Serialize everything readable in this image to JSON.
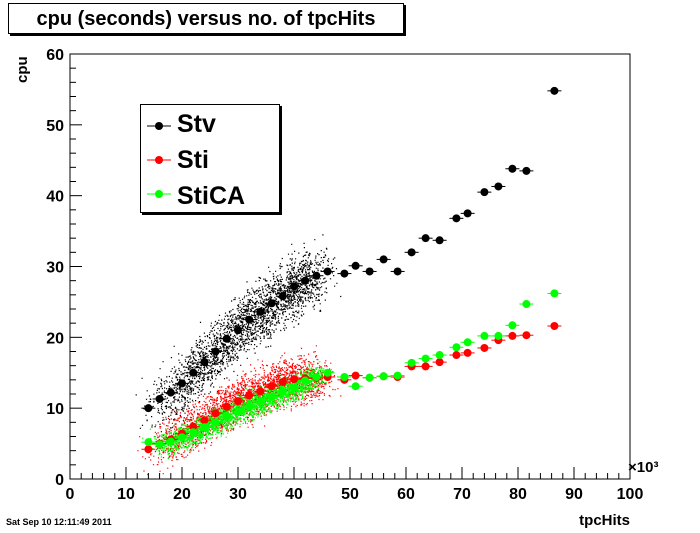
{
  "title": "cpu (seconds) versus no. of tpcHits",
  "timestamp": "Sat Sep 10 12:11:49 2011",
  "colors": {
    "Stv": "#000000",
    "Sti": "#ff0000",
    "StiCA": "#00ff00"
  },
  "chart_data": {
    "type": "scatter",
    "title": "cpu (seconds) versus no. of tpcHits",
    "xlabel": "tpcHits",
    "ylabel": "cpu",
    "x_multiplier": "×10³",
    "xlim": [
      0,
      100
    ],
    "ylim": [
      0,
      60
    ],
    "x_ticks": [
      "0",
      "10",
      "20",
      "30",
      "40",
      "50",
      "60",
      "70",
      "80",
      "90",
      "100"
    ],
    "y_ticks": [
      "0",
      "10",
      "20",
      "30",
      "40",
      "50",
      "60"
    ],
    "grid": false,
    "legend_position": "top-left",
    "series": [
      {
        "name": "Stv",
        "points": [
          [
            14,
            10
          ],
          [
            16,
            11.3
          ],
          [
            18,
            12.2
          ],
          [
            20,
            13.5
          ],
          [
            22,
            15
          ],
          [
            24,
            16.5
          ],
          [
            26,
            18
          ],
          [
            28,
            19.8
          ],
          [
            30,
            21
          ],
          [
            32,
            22.5
          ],
          [
            34,
            23.6
          ],
          [
            36,
            24.8
          ],
          [
            38,
            25.8
          ],
          [
            40,
            27.2
          ],
          [
            42,
            28
          ],
          [
            44,
            28.7
          ],
          [
            46,
            29.3
          ],
          [
            49,
            29
          ],
          [
            51,
            30.1
          ],
          [
            53.5,
            29.3
          ],
          [
            56,
            31
          ],
          [
            58.5,
            29.3
          ],
          [
            61,
            32
          ],
          [
            63.5,
            34
          ],
          [
            66,
            33.7
          ],
          [
            69,
            36.8
          ],
          [
            71,
            37.5
          ],
          [
            74,
            40.5
          ],
          [
            76.5,
            41.3
          ],
          [
            79,
            43.8
          ],
          [
            81.5,
            43.5
          ],
          [
            86.5,
            54.8
          ]
        ]
      },
      {
        "name": "Sti",
        "points": [
          [
            14,
            4.2
          ],
          [
            16,
            5
          ],
          [
            18,
            5.6
          ],
          [
            20,
            6.4
          ],
          [
            22,
            7.4
          ],
          [
            24,
            8.3
          ],
          [
            26,
            9.3
          ],
          [
            28,
            10.2
          ],
          [
            30,
            11
          ],
          [
            32,
            11.8
          ],
          [
            34,
            12.4
          ],
          [
            36,
            13.1
          ],
          [
            38,
            13.7
          ],
          [
            40,
            14.1
          ],
          [
            42,
            14.2
          ],
          [
            44,
            14.3
          ],
          [
            46,
            14.4
          ],
          [
            49,
            14
          ],
          [
            51,
            14.6
          ],
          [
            53.5,
            14.3
          ],
          [
            56,
            14.5
          ],
          [
            58.5,
            14.4
          ],
          [
            61,
            15.9
          ],
          [
            63.5,
            15.9
          ],
          [
            66,
            16.5
          ],
          [
            69,
            17.5
          ],
          [
            71,
            17.8
          ],
          [
            74,
            18.5
          ],
          [
            76.5,
            19.6
          ],
          [
            79,
            20.2
          ],
          [
            81.5,
            20.3
          ],
          [
            86.5,
            21.6
          ]
        ]
      },
      {
        "name": "StiCA",
        "points": [
          [
            14,
            5.2
          ],
          [
            16,
            4.9
          ],
          [
            18,
            5.3
          ],
          [
            20,
            5.9
          ],
          [
            22,
            6.6
          ],
          [
            24,
            7.3
          ],
          [
            26,
            8
          ],
          [
            28,
            8.8
          ],
          [
            30,
            9.5
          ],
          [
            32,
            10.3
          ],
          [
            34,
            11
          ],
          [
            36,
            11.6
          ],
          [
            38,
            12.3
          ],
          [
            40,
            13
          ],
          [
            42,
            13.9
          ],
          [
            44,
            14.4
          ],
          [
            46,
            15
          ],
          [
            49,
            14.4
          ],
          [
            51,
            13.1
          ],
          [
            53.5,
            14.3
          ],
          [
            56,
            14.5
          ],
          [
            58.5,
            14.6
          ],
          [
            61,
            16.4
          ],
          [
            63.5,
            17
          ],
          [
            66,
            17.5
          ],
          [
            69,
            18.6
          ],
          [
            71,
            19.3
          ],
          [
            74,
            20.2
          ],
          [
            76.5,
            20.2
          ],
          [
            79,
            21.7
          ],
          [
            81.5,
            24.7
          ],
          [
            86.5,
            26.2
          ]
        ]
      }
    ]
  }
}
